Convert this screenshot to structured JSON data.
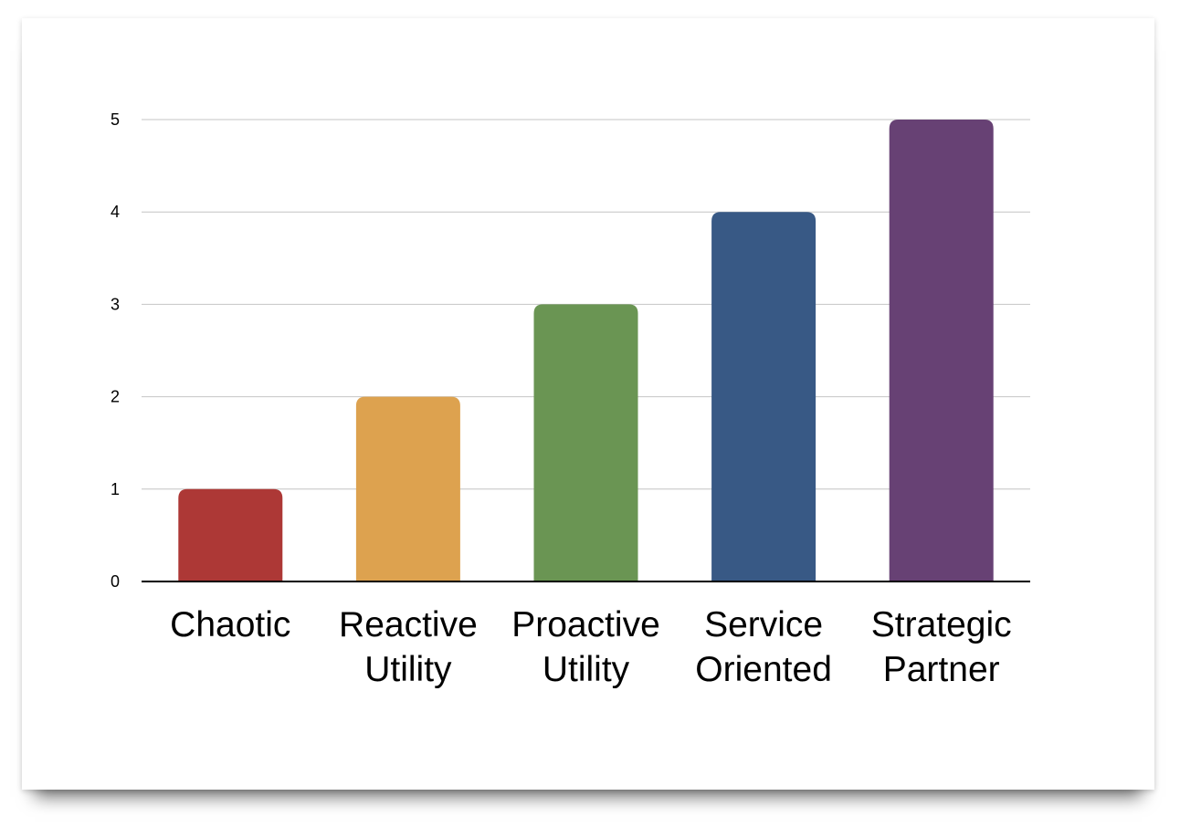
{
  "chart_data": {
    "type": "bar",
    "categories": [
      [
        "Chaotic"
      ],
      [
        "Reactive",
        "Utility"
      ],
      [
        "Proactive",
        "Utility"
      ],
      [
        "Service",
        "Oriented"
      ],
      [
        "Strategic",
        "Partner"
      ]
    ],
    "values": [
      1,
      2,
      3,
      4,
      5
    ],
    "colors": [
      "#ad3836",
      "#dda24f",
      "#6a9553",
      "#385985",
      "#674174"
    ],
    "ylim": [
      0,
      5
    ],
    "yticks": [
      0,
      1,
      2,
      3,
      4,
      5
    ],
    "grid": true,
    "title": "",
    "xlabel": "",
    "ylabel": ""
  }
}
